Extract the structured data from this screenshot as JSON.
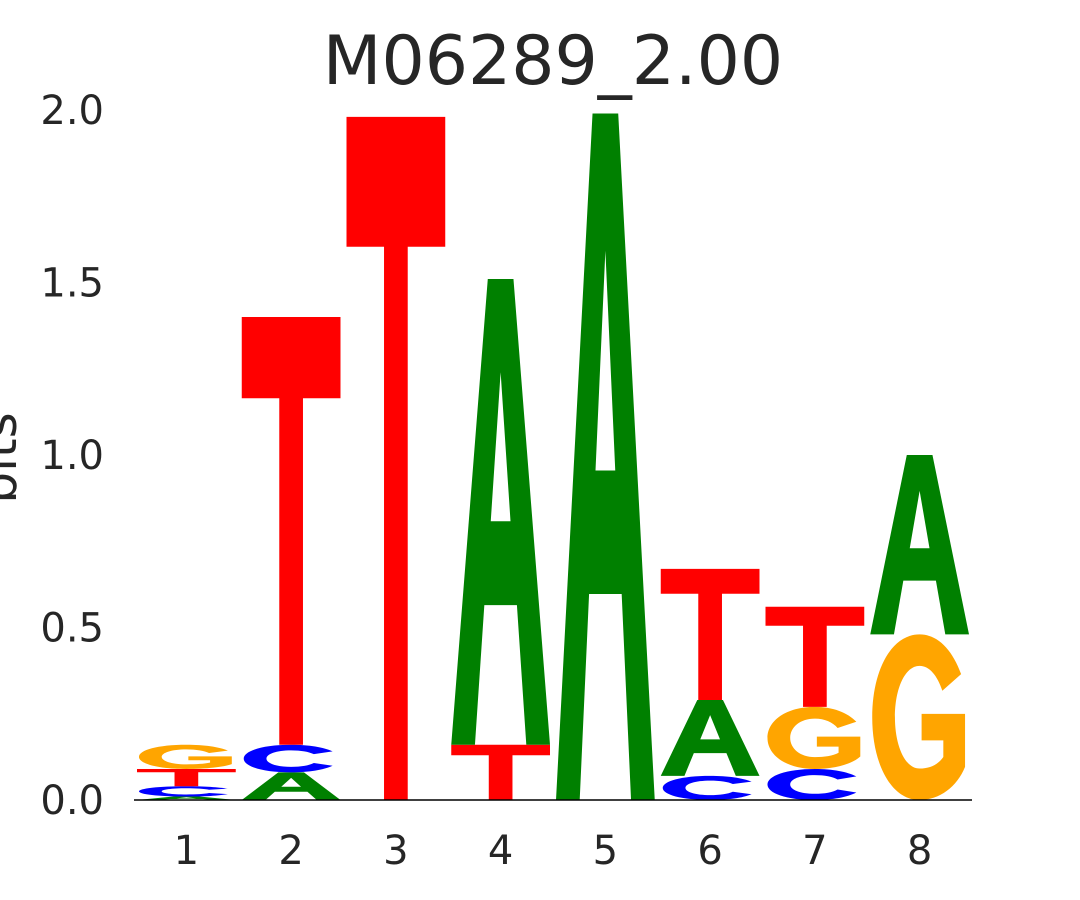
{
  "chart_data": {
    "type": "sequence-logo",
    "title": "M06289_2.00",
    "ylabel": "bits",
    "xlabel": "",
    "ylim": [
      0,
      2
    ],
    "yticks": [
      "0.0",
      "0.5",
      "1.0",
      "1.5",
      "2.0"
    ],
    "ytick_values": [
      0,
      0.5,
      1.0,
      1.5,
      2.0
    ],
    "positions": [
      "1",
      "2",
      "3",
      "4",
      "5",
      "6",
      "7",
      "8"
    ],
    "letter_colors": {
      "A": "#008000",
      "C": "#0000ff",
      "G": "#ffa500",
      "T": "#ff0000"
    },
    "stacks": [
      [
        {
          "letter": "A",
          "bits": 0.01
        },
        {
          "letter": "C",
          "bits": 0.03
        },
        {
          "letter": "T",
          "bits": 0.05
        },
        {
          "letter": "G",
          "bits": 0.07
        }
      ],
      [
        {
          "letter": "A",
          "bits": 0.08
        },
        {
          "letter": "C",
          "bits": 0.08
        },
        {
          "letter": "T",
          "bits": 1.24
        }
      ],
      [
        {
          "letter": "T",
          "bits": 1.98
        }
      ],
      [
        {
          "letter": "T",
          "bits": 0.16
        },
        {
          "letter": "A",
          "bits": 1.35
        }
      ],
      [
        {
          "letter": "A",
          "bits": 1.99
        }
      ],
      [
        {
          "letter": "C",
          "bits": 0.07
        },
        {
          "letter": "A",
          "bits": 0.22
        },
        {
          "letter": "T",
          "bits": 0.38
        }
      ],
      [
        {
          "letter": "C",
          "bits": 0.09
        },
        {
          "letter": "G",
          "bits": 0.18
        },
        {
          "letter": "T",
          "bits": 0.29
        }
      ],
      [
        {
          "letter": "G",
          "bits": 0.48
        },
        {
          "letter": "A",
          "bits": 0.52
        }
      ]
    ]
  }
}
